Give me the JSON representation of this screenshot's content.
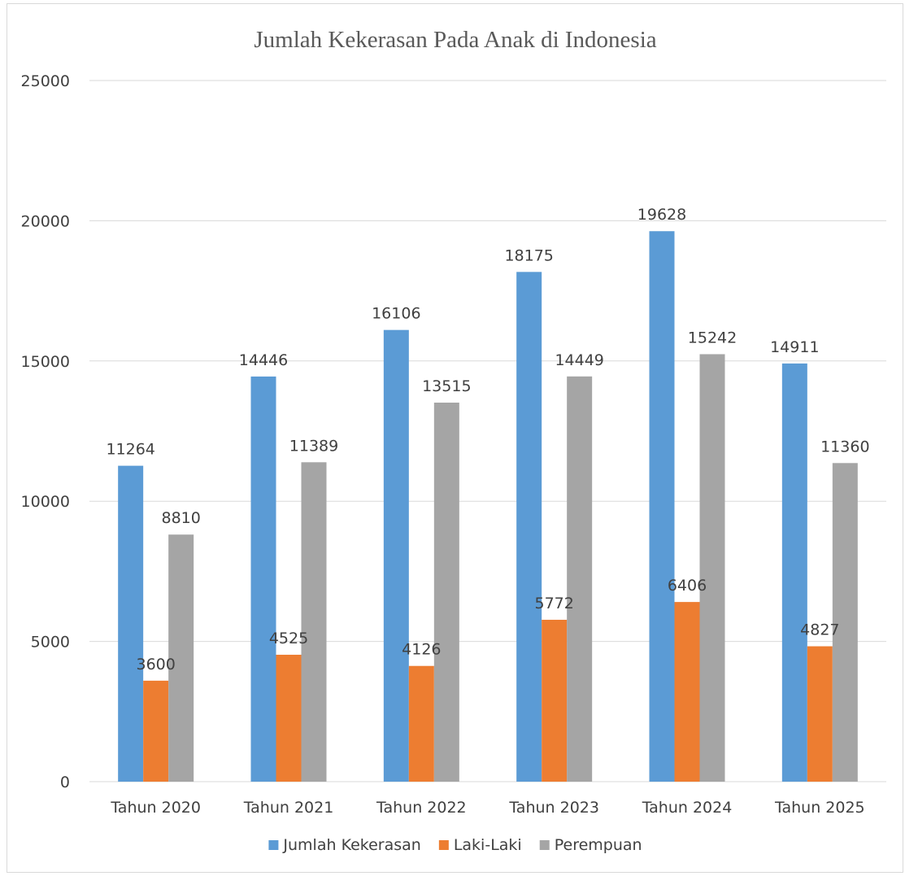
{
  "chart_data": {
    "type": "bar",
    "title": "Jumlah Kekerasan Pada Anak di Indonesia",
    "xlabel": "",
    "ylabel": "",
    "categories": [
      "Tahun 2020",
      "Tahun 2021",
      "Tahun 2022",
      "Tahun 2023",
      "Tahun 2024",
      "Tahun 2025"
    ],
    "series": [
      {
        "name": "Jumlah Kekerasan",
        "color": "#5b9bd5",
        "values": [
          11264,
          14446,
          16106,
          18175,
          19628,
          14911
        ]
      },
      {
        "name": "Laki-Laki",
        "color": "#ed7d31",
        "values": [
          3600,
          4525,
          4126,
          5772,
          6406,
          4827
        ]
      },
      {
        "name": "Perempuan",
        "color": "#a5a5a5",
        "values": [
          8810,
          11389,
          13515,
          14449,
          15242,
          11360
        ]
      }
    ],
    "ylim": [
      0,
      25000
    ],
    "yticks": [
      0,
      5000,
      10000,
      15000,
      20000,
      25000
    ],
    "grid": true,
    "legend": "bottom",
    "data_labels": true
  }
}
